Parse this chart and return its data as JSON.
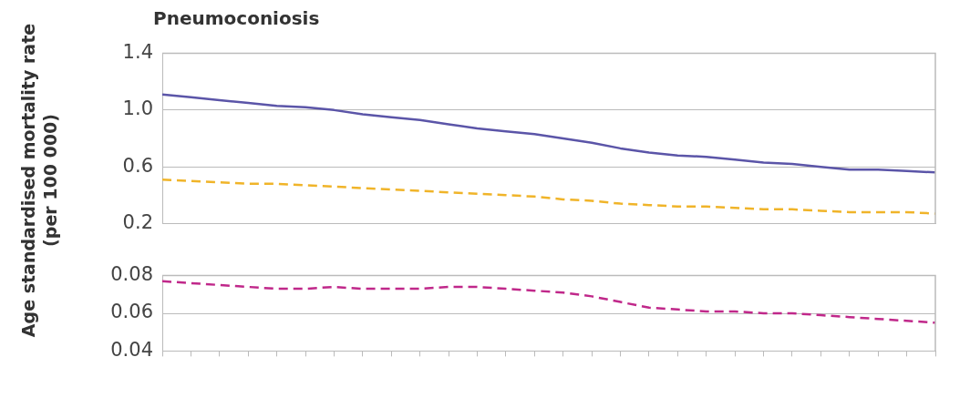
{
  "chart_data": [
    {
      "type": "line",
      "title": "Pneumoconiosis",
      "ylabel": "Age standardised mortality rate (per 100 000)",
      "categories": [
        null,
        null,
        null,
        null,
        null,
        null,
        null,
        null,
        null,
        null,
        null,
        null,
        null,
        null,
        null,
        null,
        null,
        null,
        null,
        null,
        null,
        null,
        null,
        null,
        null,
        null,
        null,
        null
      ],
      "ylim": [
        0.2,
        1.4
      ],
      "yticks": [
        {
          "value": 0.2,
          "label": "0.2"
        },
        {
          "value": 0.6,
          "label": "0.6"
        },
        {
          "value": 1.0,
          "label": "1.0"
        },
        {
          "value": 1.4,
          "label": "1.4"
        }
      ],
      "grid": "y",
      "legend": false,
      "tick_labels": "y",
      "marker": "none",
      "series": [
        {
          "color": "#5b55a8",
          "line_style": "solid",
          "values": [
            1.11,
            1.09,
            1.07,
            1.05,
            1.03,
            1.02,
            1.0,
            0.97,
            0.95,
            0.93,
            0.9,
            0.87,
            0.85,
            0.83,
            0.8,
            0.77,
            0.73,
            0.7,
            0.68,
            0.67,
            0.65,
            0.63,
            0.62,
            0.6,
            0.58,
            0.58,
            0.57,
            0.56
          ]
        },
        {
          "color": "#f0b429",
          "line_style": "dashed",
          "values": [
            0.51,
            0.5,
            0.49,
            0.48,
            0.48,
            0.47,
            0.46,
            0.45,
            0.44,
            0.43,
            0.42,
            0.41,
            0.4,
            0.39,
            0.37,
            0.36,
            0.34,
            0.33,
            0.32,
            0.32,
            0.31,
            0.3,
            0.3,
            0.29,
            0.28,
            0.28,
            0.28,
            0.27
          ]
        }
      ]
    },
    {
      "type": "line",
      "categories": [
        null,
        null,
        null,
        null,
        null,
        null,
        null,
        null,
        null,
        null,
        null,
        null,
        null,
        null,
        null,
        null,
        null,
        null,
        null,
        null,
        null,
        null,
        null,
        null,
        null,
        null,
        null,
        null
      ],
      "ylim": [
        0.04,
        0.08
      ],
      "yticks": [
        0.04,
        0.06,
        0.08
      ],
      "grid": "y",
      "legend": false,
      "tick_labels": "y",
      "marker": "none",
      "series": [
        {
          "color": "#c0288a",
          "line_style": "dashed",
          "values": [
            0.077,
            0.076,
            0.075,
            0.074,
            0.073,
            0.073,
            0.074,
            0.073,
            0.073,
            0.073,
            0.074,
            0.074,
            0.073,
            0.072,
            0.071,
            0.069,
            0.066,
            0.063,
            0.062,
            0.061,
            0.061,
            0.06,
            0.06,
            0.059,
            0.058,
            0.057,
            0.056,
            0.055
          ]
        }
      ]
    }
  ]
}
